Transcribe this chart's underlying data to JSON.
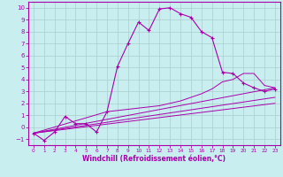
{
  "xlabel": "Windchill (Refroidissement éolien,°C)",
  "background_color": "#c8eef0",
  "grid_color": "#aacccc",
  "line_color": "#aa00aa",
  "xlim": [
    -0.5,
    23.5
  ],
  "ylim": [
    -1.5,
    10.5
  ],
  "xticks": [
    0,
    1,
    2,
    3,
    4,
    5,
    6,
    7,
    8,
    9,
    10,
    11,
    12,
    13,
    14,
    15,
    16,
    17,
    18,
    19,
    20,
    21,
    22,
    23
  ],
  "yticks": [
    -1,
    0,
    1,
    2,
    3,
    4,
    5,
    6,
    7,
    8,
    9,
    10
  ],
  "curve1_x": [
    0,
    1,
    2,
    3,
    4,
    5,
    6,
    7,
    8,
    9,
    10,
    11,
    12,
    13,
    14,
    15,
    16,
    17,
    18,
    19,
    20,
    21,
    22,
    23
  ],
  "curve1_y": [
    -0.5,
    -1.1,
    -0.4,
    0.9,
    0.3,
    0.3,
    -0.4,
    1.3,
    5.1,
    7.0,
    8.8,
    8.1,
    9.9,
    10.0,
    9.5,
    9.2,
    8.0,
    7.5,
    4.6,
    4.5,
    3.7,
    3.3,
    3.0,
    3.2
  ],
  "curve2_x": [
    0,
    7,
    8,
    9,
    10,
    11,
    12,
    13,
    14,
    15,
    16,
    17,
    18,
    19,
    20,
    21,
    22,
    23
  ],
  "curve2_y": [
    -0.5,
    1.3,
    1.4,
    1.5,
    1.6,
    1.7,
    1.8,
    2.0,
    2.2,
    2.5,
    2.8,
    3.2,
    3.8,
    4.0,
    4.5,
    4.5,
    3.5,
    3.3
  ],
  "curve3_x": [
    0,
    23
  ],
  "curve3_y": [
    -0.5,
    3.3
  ],
  "curve4_x": [
    0,
    23
  ],
  "curve4_y": [
    -0.5,
    2.5
  ],
  "curve5_x": [
    0,
    23
  ],
  "curve5_y": [
    -0.5,
    2.0
  ]
}
